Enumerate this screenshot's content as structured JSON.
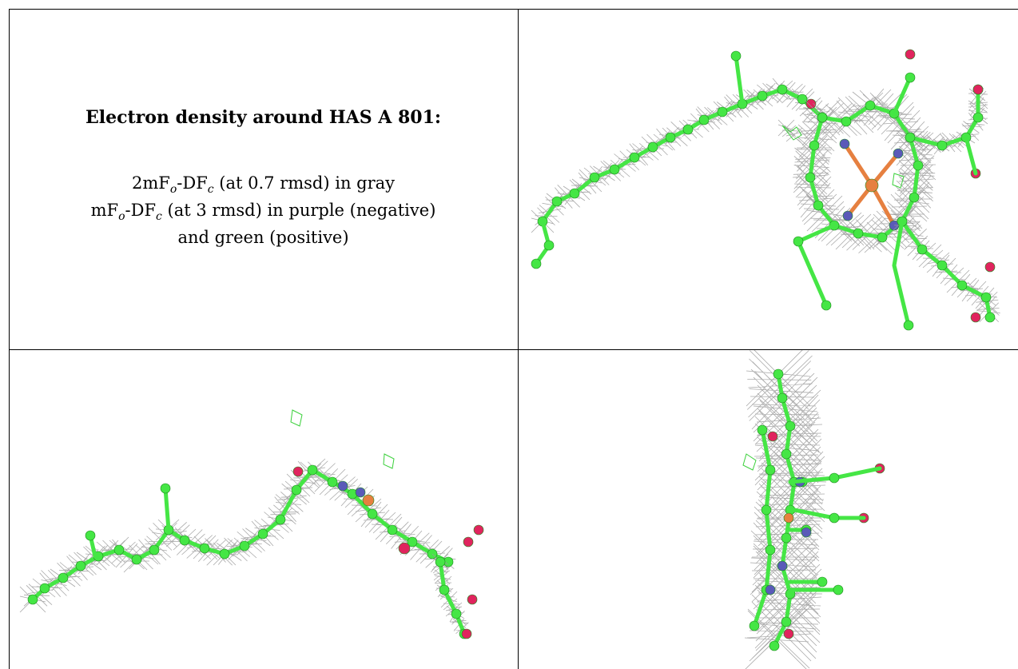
{
  "caption": {
    "title": "Electron density around HAS A 801:",
    "legend": [
      {
        "parts": [
          "2mF",
          "o",
          "-DF",
          "c",
          " (at 0.7 rmsd) in gray"
        ]
      },
      {
        "parts": [
          "mF",
          "o",
          "-DF",
          "c",
          " (at 3 rmsd) in purple (negative)"
        ]
      },
      {
        "parts": [
          "and green (positive)",
          "",
          "",
          "",
          ""
        ]
      }
    ]
  },
  "colors": {
    "carbon": "#45e645",
    "nitrogen": "#5a5ab8",
    "oxygen": "#e0245e",
    "iron": "#e68040",
    "mesh": "#9a9a9a",
    "positive": "#3ad03a",
    "border": "#000000"
  },
  "views": [
    "front-view",
    "side-view",
    "end-on-view"
  ]
}
